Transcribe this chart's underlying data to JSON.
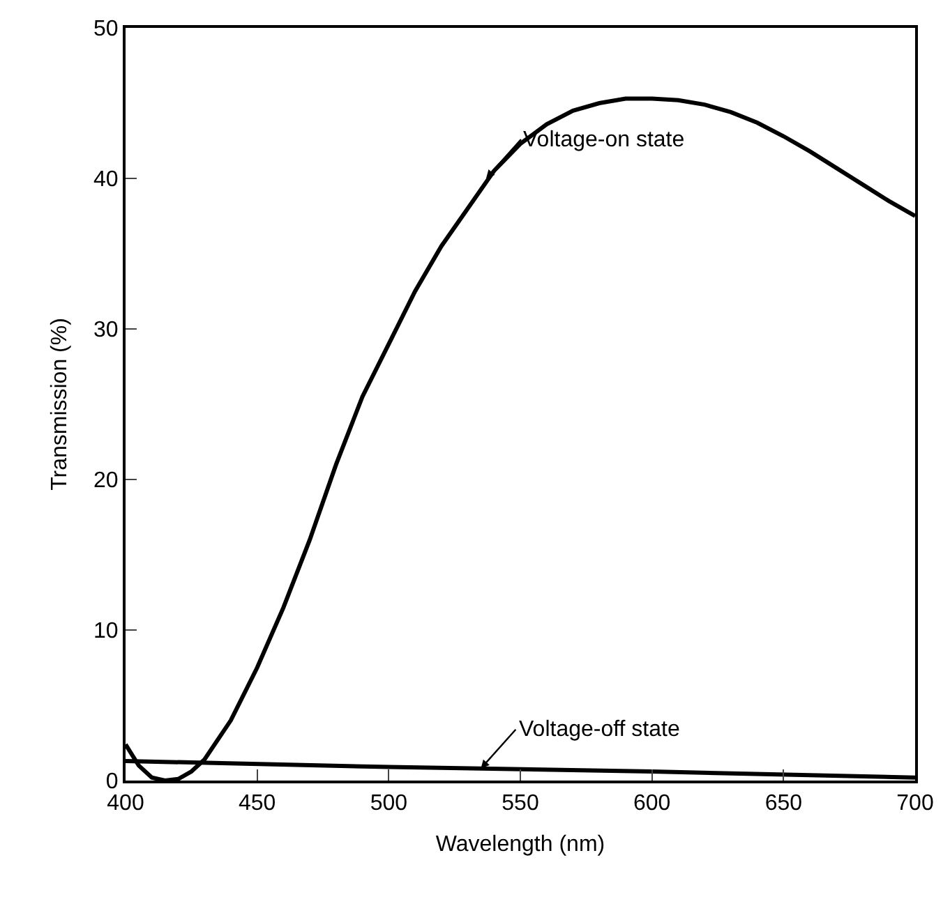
{
  "chart_data": {
    "type": "line",
    "xlabel": "Wavelength (nm)",
    "ylabel": "Transmission (%)",
    "series": [
      {
        "color": "#000000",
        "x": [
          400,
          405,
          410,
          415,
          420,
          425,
          430,
          440,
          450,
          460,
          470,
          480,
          490,
          500,
          510,
          520,
          530,
          540,
          550,
          560,
          570,
          580,
          590,
          600,
          610,
          620,
          630,
          640,
          650,
          660,
          670,
          680,
          690,
          700
        ],
        "values": [
          2.4,
          1.0,
          0.2,
          0.0,
          0.1,
          0.6,
          1.4,
          4.0,
          7.5,
          11.5,
          16.0,
          21.0,
          25.5,
          29.0,
          32.5,
          35.5,
          38.0,
          40.5,
          42.3,
          43.6,
          44.5,
          45.0,
          45.3,
          45.3,
          45.2,
          44.9,
          44.4,
          43.7,
          42.8,
          41.8,
          40.7,
          39.6,
          38.5,
          37.5
        ]
      },
      {
        "color": "#000000",
        "x": [
          400,
          500,
          600,
          700
        ],
        "values": [
          1.3,
          0.9,
          0.6,
          0.2
        ]
      }
    ],
    "annotations": [
      {
        "text": "Voltage-on state",
        "x": 537,
        "y": 40
      },
      {
        "text": "Voltage-off state",
        "x": 535,
        "y": 0.8
      }
    ],
    "xlim": [
      400,
      700
    ],
    "ylim": [
      0,
      50
    ],
    "xticks": [
      400,
      450,
      500,
      550,
      600,
      650,
      700
    ],
    "yticks": [
      0,
      10,
      20,
      30,
      40,
      50
    ],
    "marker": "none",
    "line_style": "solid"
  }
}
